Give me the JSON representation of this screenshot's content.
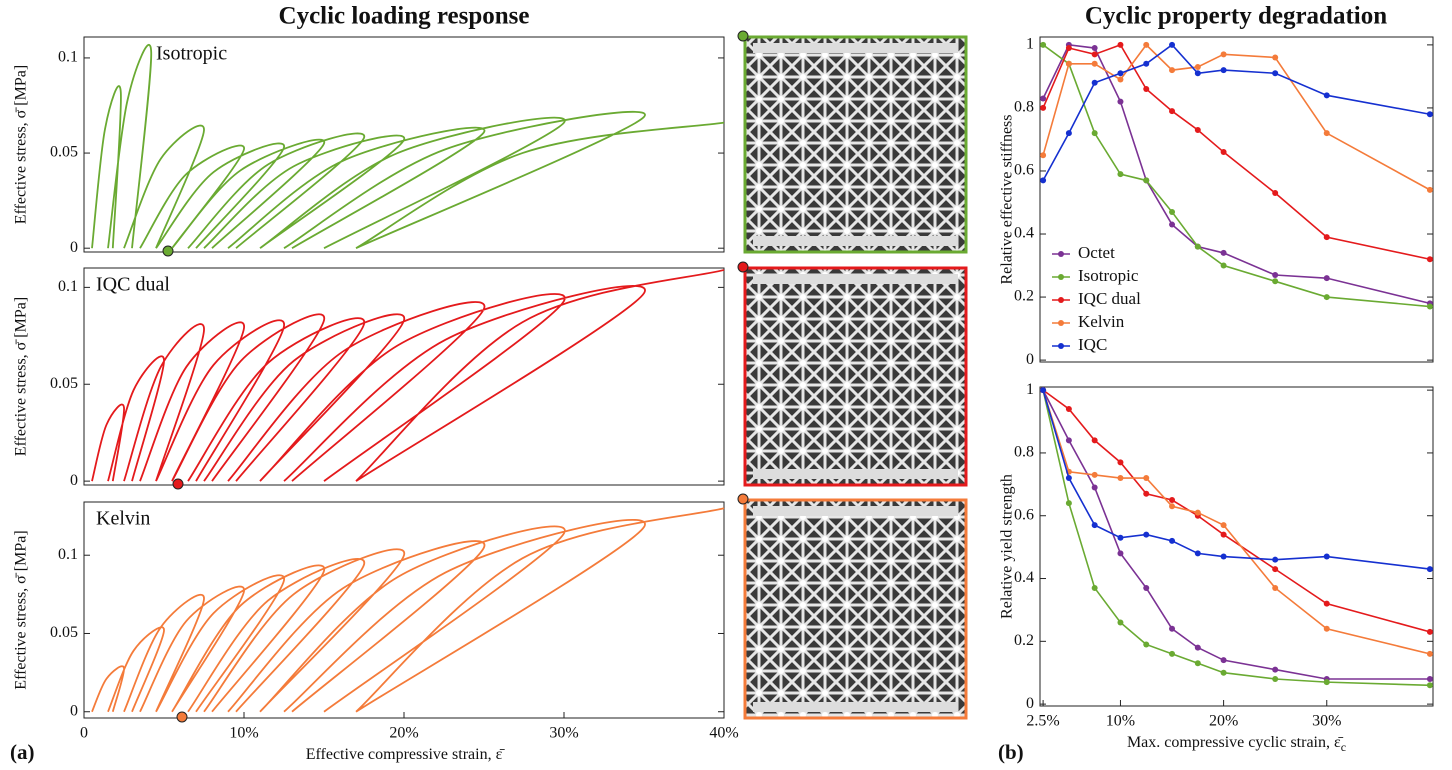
{
  "figure": {
    "left_title": "Cyclic loading response",
    "right_title": "Cyclic property degradation",
    "left_label": "(a)",
    "right_label": "(b)"
  },
  "chart_data": [
    {
      "type": "line",
      "label": "Isotropic",
      "color": "#6aaa32",
      "ylabel": "Effective stress, σ̄ [MPa]",
      "x": [
        0.5,
        1.3,
        2.3,
        1.8,
        null,
        1.5,
        2.7,
        4.2,
        3,
        null,
        2.5,
        4.8,
        7.5,
        4.5,
        null,
        3.5,
        6.4,
        10,
        5.5,
        null,
        4.5,
        8.1,
        12.5,
        7,
        null,
        5.5,
        9.8,
        15,
        8,
        null,
        6.5,
        11.5,
        17.5,
        9.5,
        null,
        7.5,
        13.1,
        20,
        11,
        null,
        9,
        16.2,
        25,
        13,
        null,
        11,
        19.6,
        30,
        15,
        null,
        12.5,
        22.6,
        35,
        17,
        null,
        17,
        27.4,
        40
      ],
      "values": [
        0,
        0.062,
        0.082,
        0,
        null,
        0,
        0.077,
        0.103,
        0,
        null,
        0,
        0.047,
        0.062,
        0,
        null,
        0,
        0.039,
        0.052,
        0,
        null,
        0,
        0.04,
        0.053,
        0,
        null,
        0,
        0.041,
        0.055,
        0,
        null,
        0,
        0.044,
        0.058,
        0,
        null,
        0,
        0.043,
        0.057,
        0,
        null,
        0,
        0.046,
        0.061,
        0,
        null,
        0,
        0.05,
        0.066,
        0,
        null,
        0,
        0.052,
        0.069,
        0,
        null,
        0,
        0.05,
        0.066
      ],
      "xlim": [
        0,
        40
      ],
      "ylim": [
        -0.002,
        0.111
      ],
      "yticks": [
        0,
        0.05,
        0.1
      ]
    },
    {
      "type": "line",
      "label": "IQC dual",
      "color": "#e41a1c",
      "ylabel": "Effective stress, σ̄ [MPa]",
      "x": [
        0.5,
        1.4,
        2.5,
        1.8,
        null,
        1.5,
        3.1,
        5,
        3,
        null,
        2.5,
        4.8,
        7.5,
        4.5,
        null,
        3.5,
        6.4,
        10,
        5.5,
        null,
        4.5,
        8.1,
        12.5,
        7,
        null,
        5.5,
        9.8,
        15,
        8,
        null,
        6.5,
        11.5,
        17.5,
        9.5,
        null,
        7.5,
        13.1,
        20,
        11,
        null,
        9,
        16.2,
        25,
        13,
        null,
        11,
        19.6,
        30,
        15,
        null,
        12.5,
        22.6,
        35,
        17,
        null,
        17,
        27.4,
        40
      ],
      "values": [
        0,
        0.029,
        0.038,
        0,
        null,
        0,
        0.047,
        0.062,
        0,
        null,
        0,
        0.059,
        0.078,
        0,
        null,
        0,
        0.059,
        0.079,
        0,
        null,
        0,
        0.06,
        0.08,
        0,
        null,
        0,
        0.062,
        0.083,
        0,
        null,
        0,
        0.061,
        0.081,
        0,
        null,
        0,
        0.062,
        0.083,
        0,
        null,
        0,
        0.067,
        0.089,
        0,
        null,
        0,
        0.07,
        0.093,
        0,
        null,
        0,
        0.073,
        0.097,
        0,
        null,
        0,
        0.082,
        0.109
      ],
      "xlim": [
        0,
        40
      ],
      "ylim": [
        -0.002,
        0.11
      ],
      "yticks": [
        0,
        0.05,
        0.1
      ]
    },
    {
      "type": "line",
      "label": "Kelvin",
      "color": "#f47b3a",
      "ylabel": "Effective stress, σ̄ [MPa]",
      "xlabel": "Effective compressive strain, ε̄",
      "x": [
        0.5,
        1.4,
        2.5,
        1.8,
        null,
        1.5,
        3.1,
        5,
        3,
        null,
        2.5,
        4.8,
        7.5,
        4.5,
        null,
        3.5,
        6.4,
        10,
        5.5,
        null,
        4.5,
        8.1,
        12.5,
        7,
        null,
        5.5,
        9.8,
        15,
        8,
        null,
        6.5,
        11.5,
        17.5,
        9.5,
        null,
        7.5,
        13.1,
        20,
        11,
        null,
        9,
        16.2,
        25,
        13,
        null,
        11,
        19.6,
        30,
        15,
        null,
        12.5,
        22.6,
        35,
        17,
        null,
        17,
        27.4,
        40
      ],
      "values": [
        0,
        0.021,
        0.028,
        0,
        null,
        0,
        0.039,
        0.052,
        0,
        null,
        0,
        0.054,
        0.072,
        0,
        null,
        0,
        0.058,
        0.077,
        0,
        null,
        0,
        0.063,
        0.084,
        0,
        null,
        0,
        0.068,
        0.09,
        0,
        null,
        0,
        0.071,
        0.094,
        0,
        null,
        0,
        0.075,
        0.1,
        0,
        null,
        0,
        0.079,
        0.105,
        0,
        null,
        0,
        0.086,
        0.114,
        0,
        null,
        0,
        0.089,
        0.118,
        0,
        null,
        0,
        0.098,
        0.13
      ],
      "xlim": [
        0,
        40
      ],
      "ylim": [
        -0.004,
        0.134
      ],
      "yticks": [
        0,
        0.05,
        0.1
      ],
      "xticks": [
        0,
        {
          "value": 10,
          "label": "10%"
        },
        {
          "value": 20,
          "label": "20%"
        },
        {
          "value": 30,
          "label": "30%"
        },
        {
          "value": 40,
          "label": "40%"
        }
      ]
    },
    {
      "type": "line",
      "ylabel": "Relative effective stiffness",
      "legend": "lower left",
      "x": [
        2.5,
        5,
        7.5,
        10,
        12.5,
        15,
        17.5,
        20,
        25,
        30,
        40
      ],
      "series": [
        {
          "name": "Octet",
          "color": "#7b3294",
          "values": [
            0.83,
            1.0,
            0.99,
            0.82,
            0.57,
            0.43,
            0.36,
            0.34,
            0.27,
            0.26,
            0.18
          ]
        },
        {
          "name": "Isotropic",
          "color": "#6aaa32",
          "values": [
            1.0,
            0.94,
            0.72,
            0.59,
            0.57,
            0.47,
            0.36,
            0.3,
            0.25,
            0.2,
            0.17
          ]
        },
        {
          "name": "IQC dual",
          "color": "#e41a1c",
          "values": [
            0.8,
            0.99,
            0.97,
            1.0,
            0.86,
            0.79,
            0.73,
            0.66,
            0.53,
            0.39,
            0.32
          ]
        },
        {
          "name": "Kelvin",
          "color": "#f47b3a",
          "values": [
            0.65,
            0.94,
            0.94,
            0.89,
            1.0,
            0.92,
            0.93,
            0.97,
            0.96,
            0.72,
            0.54
          ]
        },
        {
          "name": "IQC",
          "color": "#1530d0",
          "values": [
            0.57,
            0.72,
            0.88,
            0.91,
            0.94,
            1.0,
            0.91,
            0.92,
            0.91,
            0.84,
            0.78
          ]
        }
      ],
      "xlim": [
        2.2,
        40.3
      ],
      "ylim": [
        -0.006,
        1.025
      ],
      "yticks": [
        0,
        0.2,
        0.4,
        0.6,
        0.8,
        1
      ]
    },
    {
      "type": "line",
      "ylabel": "Relative yield strength",
      "xlabel": "Max. compressive cyclic strain, ε̄",
      "xlabel_sub": "c",
      "x": [
        2.5,
        5,
        7.5,
        10,
        12.5,
        15,
        17.5,
        20,
        25,
        30,
        40
      ],
      "series": [
        {
          "color": "#7b3294",
          "values": [
            1.0,
            0.84,
            0.69,
            0.48,
            0.37,
            0.24,
            0.18,
            0.14,
            0.11,
            0.08,
            0.08
          ]
        },
        {
          "color": "#6aaa32",
          "values": [
            1.0,
            0.64,
            0.37,
            0.26,
            0.19,
            0.16,
            0.13,
            0.1,
            0.08,
            0.07,
            0.06
          ]
        },
        {
          "color": "#e41a1c",
          "values": [
            1.0,
            0.94,
            0.84,
            0.77,
            0.67,
            0.65,
            0.6,
            0.54,
            0.43,
            0.32,
            0.23
          ]
        },
        {
          "color": "#f47b3a",
          "values": [
            1.0,
            0.74,
            0.73,
            0.72,
            0.72,
            0.63,
            0.61,
            0.57,
            0.37,
            0.24,
            0.16
          ]
        },
        {
          "color": "#1530d0",
          "values": [
            1.0,
            0.72,
            0.57,
            0.53,
            0.54,
            0.52,
            0.48,
            0.47,
            0.46,
            0.47,
            0.43
          ]
        }
      ],
      "xlim": [
        2.2,
        40.3
      ],
      "ylim": [
        -0.006,
        1.01
      ],
      "yticks": [
        0,
        0.2,
        0.4,
        0.6,
        0.8,
        1
      ],
      "xticks": [
        {
          "value": 2.5,
          "label": "2.5%"
        },
        {
          "value": 10,
          "label": "10%"
        },
        {
          "value": 20,
          "label": "20%"
        },
        {
          "value": 30,
          "label": "30%"
        }
      ]
    }
  ]
}
